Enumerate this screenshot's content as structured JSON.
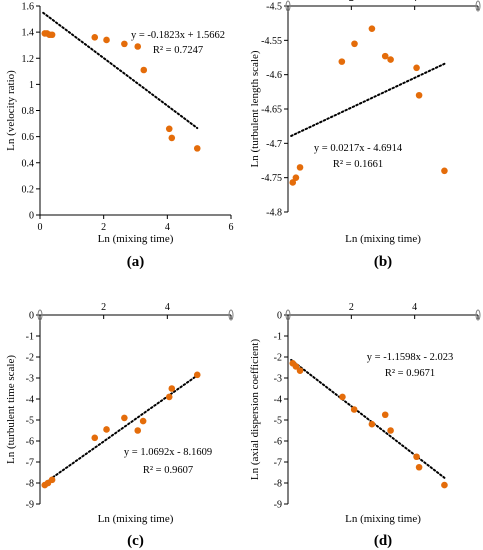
{
  "style": {
    "point_color": "#E46C0A",
    "axis_color": "#000000",
    "trend_color": "#000000"
  },
  "chart_data": [
    {
      "id": "a",
      "panel_label": "(a)",
      "type": "scatter",
      "xlabel": "Ln (mixing time)",
      "ylabel": "Ln (velocity ratio)",
      "xlim": [
        0,
        6
      ],
      "ylim": [
        0,
        1.6
      ],
      "x_axis_at": 0,
      "x_ticks": [
        0,
        2,
        4,
        6
      ],
      "x_tick_labels": [
        "0",
        "2",
        "4",
        "6"
      ],
      "y_ticks": [
        0,
        0.2,
        0.4,
        0.6,
        0.8,
        1.0,
        1.2,
        1.4,
        1.6
      ],
      "y_tick_labels": [
        "0",
        "0.2",
        "0.4",
        "0.6",
        "0.8",
        "1",
        "1.2",
        "1.4",
        "1.6"
      ],
      "x_tick_labels_side": "bottom",
      "points": {
        "x": [
          0.15,
          0.22,
          0.3,
          0.38,
          1.72,
          2.09,
          2.65,
          3.07,
          3.26,
          4.06,
          4.14,
          4.94
        ],
        "y": [
          1.39,
          1.39,
          1.38,
          1.38,
          1.36,
          1.34,
          1.31,
          1.29,
          1.11,
          0.66,
          0.59,
          0.51
        ]
      },
      "trendline": {
        "slope": -0.1823,
        "intercept": 1.5662,
        "x_range": [
          0.1,
          4.94
        ]
      },
      "equation": "y = -0.1823x + 1.5662",
      "r2": "R² = 0.7247"
    },
    {
      "id": "b",
      "panel_label": "(b)",
      "type": "scatter",
      "xlabel": "Ln (mixing time)",
      "ylabel": "Ln (turbulent length scale)",
      "xlim": [
        0,
        6
      ],
      "ylim": [
        -4.8,
        -4.5
      ],
      "x_axis_at": -4.5,
      "x_ticks": [
        0,
        2,
        4,
        6
      ],
      "x_tick_labels": [
        "",
        "2",
        "4",
        ""
      ],
      "y_ticks": [
        -4.8,
        -4.75,
        -4.7,
        -4.65,
        -4.6,
        -4.55,
        -4.5
      ],
      "y_tick_labels": [
        "-4.8",
        "-4.75",
        "-4.7",
        "-4.65",
        "-4.6",
        "-4.55",
        "-4.5"
      ],
      "x_tick_labels_side": "top",
      "points": {
        "x": [
          0.15,
          0.25,
          0.38,
          1.7,
          2.1,
          2.65,
          3.07,
          3.24,
          4.06,
          4.14,
          4.94
        ],
        "y": [
          -4.757,
          -4.75,
          -4.735,
          -4.581,
          -4.555,
          -4.533,
          -4.573,
          -4.578,
          -4.59,
          -4.63,
          -4.74
        ]
      },
      "trendline": {
        "slope": 0.0217,
        "intercept": -4.6914,
        "x_range": [
          0.1,
          4.94
        ]
      },
      "equation": "y = 0.0217x - 4.6914",
      "r2": "R² = 0.1661"
    },
    {
      "id": "c",
      "panel_label": "(c)",
      "type": "scatter",
      "xlabel": "Ln (mixing time)",
      "ylabel": "Ln (turbulent time scale)",
      "xlim": [
        0,
        6
      ],
      "ylim": [
        -9,
        0
      ],
      "x_axis_at": 0,
      "x_ticks": [
        0,
        2,
        4,
        6
      ],
      "x_tick_labels": [
        "",
        "2",
        "4",
        ""
      ],
      "y_ticks": [
        -9,
        -8,
        -7,
        -6,
        -5,
        -4,
        -3,
        -2,
        -1,
        0
      ],
      "y_tick_labels": [
        "-9",
        "-8",
        "-7",
        "-6",
        "-5",
        "-4",
        "-3",
        "-2",
        "-1",
        "0"
      ],
      "x_tick_labels_side": "top",
      "points": {
        "x": [
          0.15,
          0.25,
          0.38,
          1.72,
          2.09,
          2.65,
          3.07,
          3.24,
          4.06,
          4.14,
          4.94
        ],
        "y": [
          -8.1,
          -8.0,
          -7.85,
          -5.85,
          -5.45,
          -4.9,
          -5.5,
          -5.05,
          -3.9,
          -3.5,
          -2.85
        ]
      },
      "trendline": {
        "slope": 1.0692,
        "intercept": -8.1609,
        "x_range": [
          0.1,
          4.94
        ]
      },
      "equation": "y = 1.0692x - 8.1609",
      "r2": "R² = 0.9607"
    },
    {
      "id": "d",
      "panel_label": "(d)",
      "type": "scatter",
      "xlabel": "Ln (mixing time)",
      "ylabel": "Ln (axial dispersion coefficient)",
      "xlim": [
        0,
        6
      ],
      "ylim": [
        -9,
        0
      ],
      "x_axis_at": 0,
      "x_ticks": [
        0,
        2,
        4,
        6
      ],
      "x_tick_labels": [
        "",
        "2",
        "4",
        ""
      ],
      "y_ticks": [
        -9,
        -8,
        -7,
        -6,
        -5,
        -4,
        -3,
        -2,
        -1,
        0
      ],
      "y_tick_labels": [
        "-9",
        "-8",
        "-7",
        "-6",
        "-5",
        "-4",
        "-3",
        "-2",
        "-1",
        "0"
      ],
      "x_tick_labels_side": "top",
      "points": {
        "x": [
          0.15,
          0.25,
          0.38,
          1.72,
          2.09,
          2.65,
          3.07,
          3.24,
          4.06,
          4.14,
          4.94
        ],
        "y": [
          -2.3,
          -2.45,
          -2.65,
          -3.9,
          -4.5,
          -5.2,
          -4.75,
          -5.5,
          -6.75,
          -7.25,
          -8.1
        ]
      },
      "trendline": {
        "slope": -1.1598,
        "intercept": -2.023,
        "x_range": [
          0.1,
          4.94
        ]
      },
      "equation": "y = -1.1598x - 2.023",
      "r2": "R² = 0.9671"
    }
  ]
}
